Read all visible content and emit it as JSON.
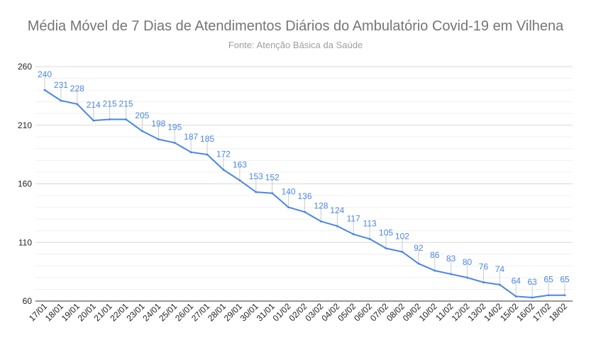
{
  "chart_data": {
    "type": "line",
    "title": "Média Móvel de 7 Dias de Atendimentos Diários do Ambulatório Covid-19 em Vilhena",
    "subtitle": "Fonte: Atenção Básica da Saúde",
    "xlabel": "",
    "ylabel": "",
    "ylim": [
      60,
      260
    ],
    "yticks": [
      "260",
      "210",
      "160",
      "110",
      "60"
    ],
    "grid": true,
    "categories": [
      "17/01",
      "18/01",
      "19/01",
      "20/01",
      "21/01",
      "22/01",
      "23/01",
      "24/01",
      "25/01",
      "26/01",
      "27/01",
      "28/01",
      "29/01",
      "30/01",
      "31/01",
      "01/02",
      "02/02",
      "03/02",
      "04/02",
      "05/02",
      "06/02",
      "07/02",
      "08/02",
      "09/02",
      "10/02",
      "11/02",
      "12/02",
      "13/02",
      "14/02",
      "15/02",
      "16/02",
      "17/02",
      "18/02"
    ],
    "series": [
      {
        "color": "#4a86e8",
        "values": [
          240,
          231,
          228,
          214,
          215,
          215,
          205,
          198,
          195,
          187,
          185,
          172,
          163,
          153,
          152,
          140,
          136,
          128,
          124,
          117,
          113,
          105,
          102,
          92,
          86,
          83,
          80,
          76,
          74,
          64,
          63,
          65,
          65
        ]
      }
    ]
  }
}
